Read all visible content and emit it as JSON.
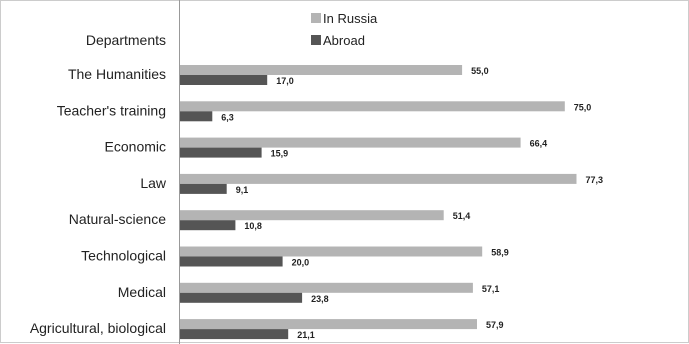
{
  "chart_data": {
    "type": "bar",
    "orientation": "horizontal",
    "header_label": "Departments",
    "categories": [
      "The Humanities",
      "Teacher's training",
      "Economic",
      "Law",
      "Natural-science",
      "Technological",
      "Medical",
      "Agricultural, biological"
    ],
    "series": [
      {
        "name": "In Russia",
        "values": [
          55.0,
          75.0,
          66.4,
          77.3,
          51.4,
          58.9,
          57.1,
          57.9
        ],
        "labels": [
          "55,0",
          "75,0",
          "66,4",
          "77,3",
          "51,4",
          "58,9",
          "57,1",
          "57,9"
        ]
      },
      {
        "name": "Abroad",
        "values": [
          17.0,
          6.3,
          15.9,
          9.1,
          10.8,
          20.0,
          23.8,
          21.1
        ],
        "labels": [
          "17,0",
          "6,3",
          "15,9",
          "9,1",
          "10,8",
          "20,0",
          "23,8",
          "21,1"
        ]
      }
    ],
    "xlim": [
      0,
      100
    ],
    "grid": false,
    "legend_position": "top-center",
    "colors": {
      "In Russia": "#b4b4b4",
      "Abroad": "#555555",
      "axis": "#999999"
    }
  }
}
